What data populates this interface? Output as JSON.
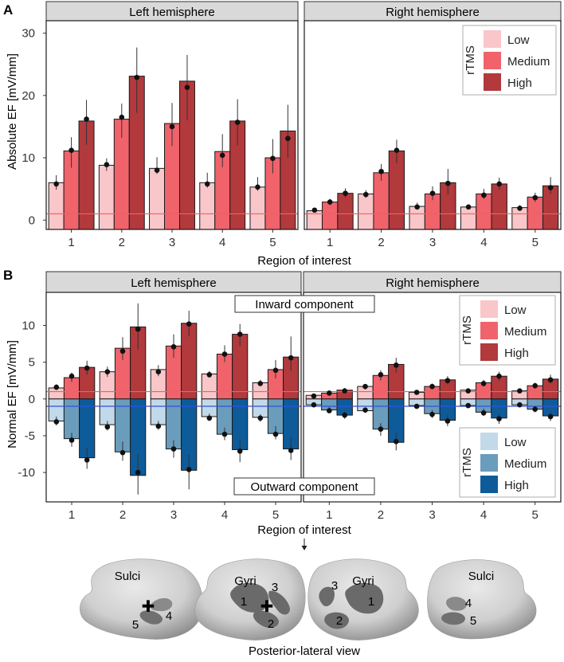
{
  "chart_data": [
    {
      "panel": "A",
      "type": "bar",
      "ylabel": "Absolute EF [mV/mm]",
      "xlabel": "Region of interest",
      "ylim": [
        -1.5,
        32
      ],
      "yticks": [
        0,
        10,
        20,
        30
      ],
      "reference_line": 1,
      "categories": [
        "1",
        "2",
        "3",
        "4",
        "5"
      ],
      "facets": [
        {
          "name": "Left hemisphere",
          "series": [
            {
              "name": "Low",
              "values": [
                6.0,
                8.8,
                8.3,
                6.0,
                5.3
              ],
              "points": [
                5.8,
                8.9,
                8.0,
                5.8,
                5.3
              ],
              "errors": [
                [
                  4.9,
                  7.2
                ],
                [
                  7.9,
                  9.9
                ],
                [
                  7.4,
                  10.1
                ],
                [
                  5.2,
                  7.6
                ],
                [
                  4.7,
                  6.9
                ]
              ]
            },
            {
              "name": "Medium",
              "values": [
                11.1,
                16.2,
                15.5,
                11.0,
                10.0
              ],
              "points": [
                11.2,
                16.5,
                15.0,
                10.4,
                9.9
              ],
              "errors": [
                [
                  8.4,
                  13.3
                ],
                [
                  13.2,
                  18.7
                ],
                [
                  11.9,
                  18.8
                ],
                [
                  8.5,
                  13.8
                ],
                [
                  7.5,
                  13.0
                ]
              ]
            },
            {
              "name": "High",
              "values": [
                15.9,
                23.1,
                22.3,
                15.9,
                14.3
              ],
              "points": [
                16.2,
                22.9,
                21.3,
                15.7,
                13.1
              ],
              "errors": [
                [
                  12.1,
                  19.3
                ],
                [
                  17.2,
                  27.7
                ],
                [
                  16.0,
                  26.5
                ],
                [
                  12.0,
                  19.4
                ],
                [
                  10.0,
                  18.5
                ]
              ]
            }
          ]
        },
        {
          "name": "Right hemisphere",
          "series": [
            {
              "name": "Low",
              "values": [
                1.5,
                4.2,
                2.2,
                2.1,
                2.0
              ],
              "points": [
                1.6,
                4.1,
                2.1,
                2.1,
                1.9
              ],
              "errors": [
                [
                  1.3,
                  1.9
                ],
                [
                  3.6,
                  4.8
                ],
                [
                  1.7,
                  2.8
                ],
                [
                  1.7,
                  2.5
                ],
                [
                  1.6,
                  2.4
                ]
              ]
            },
            {
              "name": "Medium",
              "values": [
                2.9,
                7.6,
                4.2,
                4.2,
                3.7
              ],
              "points": [
                2.9,
                7.8,
                4.3,
                4.0,
                3.6
              ],
              "errors": [
                [
                  2.4,
                  3.4
                ],
                [
                  6.3,
                  9.0
                ],
                [
                  3.2,
                  5.4
                ],
                [
                  3.4,
                  5.0
                ],
                [
                  2.9,
                  4.4
                ]
              ]
            },
            {
              "name": "High",
              "values": [
                4.3,
                11.1,
                6.0,
                5.8,
                5.5
              ],
              "points": [
                4.3,
                11.2,
                5.9,
                5.8,
                5.2
              ],
              "errors": [
                [
                  3.6,
                  5.1
                ],
                [
                  9.1,
                  12.9
                ],
                [
                  4.1,
                  8.2
                ],
                [
                  4.9,
                  6.8
                ],
                [
                  4.2,
                  6.9
                ]
              ]
            }
          ]
        }
      ],
      "legend": {
        "title": "rTMS",
        "position": "top-right",
        "entries": [
          "Low",
          "Medium",
          "High"
        ]
      }
    },
    {
      "panel": "B",
      "type": "bar",
      "ylabel": "Normal EF [mV/mm]",
      "xlabel": "Region of interest",
      "ylim": [
        -14,
        14.5
      ],
      "yticks": [
        -10,
        -5,
        0,
        5,
        10
      ],
      "reference_lines": [
        1,
        -1
      ],
      "categories": [
        "1",
        "2",
        "3",
        "4",
        "5"
      ],
      "annotations": [
        "Inward component",
        "Outward component"
      ],
      "facets": [
        {
          "name": "Left hemisphere",
          "inward": [
            {
              "name": "Low",
              "values": [
                1.5,
                3.7,
                4.0,
                3.4,
                2.2
              ],
              "points": [
                1.6,
                3.7,
                3.7,
                3.3,
                2.1
              ],
              "errors": [
                [
                  1.2,
                  2.0
                ],
                [
                  3.0,
                  4.4
                ],
                [
                  3.1,
                  4.6
                ],
                [
                  2.9,
                  3.8
                ],
                [
                  1.8,
                  2.6
                ]
              ]
            },
            {
              "name": "Medium",
              "values": [
                2.9,
                6.9,
                7.2,
                6.1,
                4.0
              ],
              "points": [
                3.1,
                6.5,
                7.1,
                6.1,
                3.9
              ],
              "errors": [
                [
                  2.3,
                  3.6
                ],
                [
                  5.3,
                  8.4
                ],
                [
                  5.6,
                  8.8
                ],
                [
                  5.0,
                  7.3
                ],
                [
                  2.8,
                  5.3
                ]
              ]
            },
            {
              "name": "High",
              "values": [
                4.3,
                9.8,
                10.3,
                8.8,
                5.7
              ],
              "points": [
                4.2,
                9.5,
                10.2,
                8.8,
                5.6
              ],
              "errors": [
                [
                  3.3,
                  5.2
                ],
                [
                  6.7,
                  13.0
                ],
                [
                  8.5,
                  12.0
                ],
                [
                  7.2,
                  10.2
                ],
                [
                  3.8,
                  8.5
                ]
              ]
            }
          ],
          "outward": [
            {
              "name": "Low",
              "values": [
                -3.0,
                -3.5,
                -3.5,
                -2.4,
                -2.5
              ],
              "points": [
                -3.1,
                -3.8,
                -3.7,
                -2.6,
                -2.6
              ],
              "errors": [
                [
                  -3.6,
                  -2.4
                ],
                [
                  -4.3,
                  -3.0
                ],
                [
                  -4.2,
                  -3.0
                ],
                [
                  -3.0,
                  -2.0
                ],
                [
                  -3.1,
                  -2.1
                ]
              ]
            },
            {
              "name": "Medium",
              "values": [
                -5.4,
                -7.2,
                -6.8,
                -4.8,
                -4.7
              ],
              "points": [
                -5.6,
                -7.3,
                -6.8,
                -4.8,
                -4.8
              ],
              "errors": [
                [
                  -6.5,
                  -4.6
                ],
                [
                  -8.4,
                  -5.8
                ],
                [
                  -8.0,
                  -5.6
                ],
                [
                  -5.6,
                  -3.9
                ],
                [
                  -5.5,
                  -3.7
                ]
              ]
            },
            {
              "name": "High",
              "values": [
                -8.0,
                -10.4,
                -9.7,
                -6.9,
                -6.8
              ],
              "points": [
                -8.3,
                -10.0,
                -9.6,
                -7.1,
                -7.0
              ],
              "errors": [
                [
                  -9.5,
                  -6.7
                ],
                [
                  -13.0,
                  -7.5
                ],
                [
                  -12.3,
                  -7.6
                ],
                [
                  -8.6,
                  -5.6
                ],
                [
                  -8.3,
                  -5.2
                ]
              ]
            }
          ]
        },
        {
          "name": "Right hemisphere",
          "inward": [
            {
              "name": "Low",
              "values": [
                0.5,
                1.7,
                0.9,
                1.2,
                1.1
              ],
              "points": [
                0.4,
                1.7,
                0.9,
                1.1,
                1.1
              ],
              "errors": [
                [
                  0.3,
                  0.6
                ],
                [
                  1.3,
                  2.0
                ],
                [
                  0.7,
                  1.1
                ],
                [
                  0.9,
                  1.4
                ],
                [
                  0.8,
                  1.3
                ]
              ]
            },
            {
              "name": "Medium",
              "values": [
                0.8,
                3.2,
                1.7,
                2.2,
                1.8
              ],
              "points": [
                0.8,
                3.3,
                1.7,
                2.1,
                1.8
              ],
              "errors": [
                [
                  0.6,
                  1.0
                ],
                [
                  2.5,
                  3.9
                ],
                [
                  1.3,
                  2.1
                ],
                [
                  1.7,
                  2.6
                ],
                [
                  1.4,
                  2.2
                ]
              ]
            },
            {
              "name": "High",
              "values": [
                1.2,
                4.7,
                2.6,
                3.1,
                2.7
              ],
              "points": [
                1.1,
                4.6,
                2.5,
                3.1,
                2.6
              ],
              "errors": [
                [
                  0.9,
                  1.5
                ],
                [
                  3.6,
                  5.6
                ],
                [
                  2.0,
                  3.1
                ],
                [
                  2.5,
                  3.7
                ],
                [
                  2.1,
                  3.3
                ]
              ]
            }
          ],
          "outward": [
            {
              "name": "Low",
              "values": [
                -0.8,
                -1.6,
                -0.9,
                -0.9,
                -0.8
              ],
              "points": [
                -0.8,
                -1.5,
                -1.0,
                -0.9,
                -0.8
              ],
              "errors": [
                [
                  -1.0,
                  -0.6
                ],
                [
                  -1.9,
                  -1.3
                ],
                [
                  -1.1,
                  -0.7
                ],
                [
                  -1.1,
                  -0.7
                ],
                [
                  -1.0,
                  -0.6
                ]
              ]
            },
            {
              "name": "Medium",
              "values": [
                -1.5,
                -4.1,
                -2.0,
                -1.8,
                -1.4
              ],
              "points": [
                -1.6,
                -4.1,
                -2.1,
                -1.9,
                -1.4
              ],
              "errors": [
                [
                  -1.9,
                  -1.1
                ],
                [
                  -5.0,
                  -3.3
                ],
                [
                  -2.6,
                  -1.5
                ],
                [
                  -2.3,
                  -1.3
                ],
                [
                  -1.8,
                  -1.0
                ]
              ]
            },
            {
              "name": "High",
              "values": [
                -2.2,
                -5.9,
                -2.9,
                -2.6,
                -2.3
              ],
              "points": [
                -2.2,
                -5.8,
                -3.0,
                -2.7,
                -2.4
              ],
              "errors": [
                [
                  -2.7,
                  -1.7
                ],
                [
                  -7.0,
                  -4.6
                ],
                [
                  -3.7,
                  -2.2
                ],
                [
                  -3.4,
                  -2.0
                ],
                [
                  -3.0,
                  -1.7
                ]
              ]
            }
          ]
        }
      ],
      "legends": [
        {
          "title": "rTMS",
          "position": "top-right",
          "entries": [
            "Low",
            "Medium",
            "High"
          ]
        },
        {
          "title": "rTMS",
          "position": "bottom-right",
          "entries": [
            "Low",
            "Medium",
            "High"
          ]
        }
      ]
    }
  ],
  "panel_labels": [
    "A",
    "B"
  ],
  "brain_views": {
    "caption": "Posterior-lateral view",
    "views": [
      {
        "title": "Sulci",
        "labels": [
          "4",
          "5"
        ]
      },
      {
        "title": "Gyri",
        "labels": [
          "1",
          "2",
          "3"
        ]
      },
      {
        "title": "Gyri",
        "labels": [
          "1",
          "2",
          "3"
        ]
      },
      {
        "title": "Sulci",
        "labels": [
          "4",
          "5"
        ]
      }
    ]
  },
  "colors": {
    "red_low": "#f9c6c9",
    "red_medium": "#f0636b",
    "red_high": "#b2393c",
    "blue_low": "#c2d9ea",
    "blue_medium": "#6a9cbc",
    "blue_high": "#0e5b9a",
    "strip_bg": "#d9d9d9",
    "ref_red": "#f26060",
    "ref_blue": "#3352d6"
  }
}
